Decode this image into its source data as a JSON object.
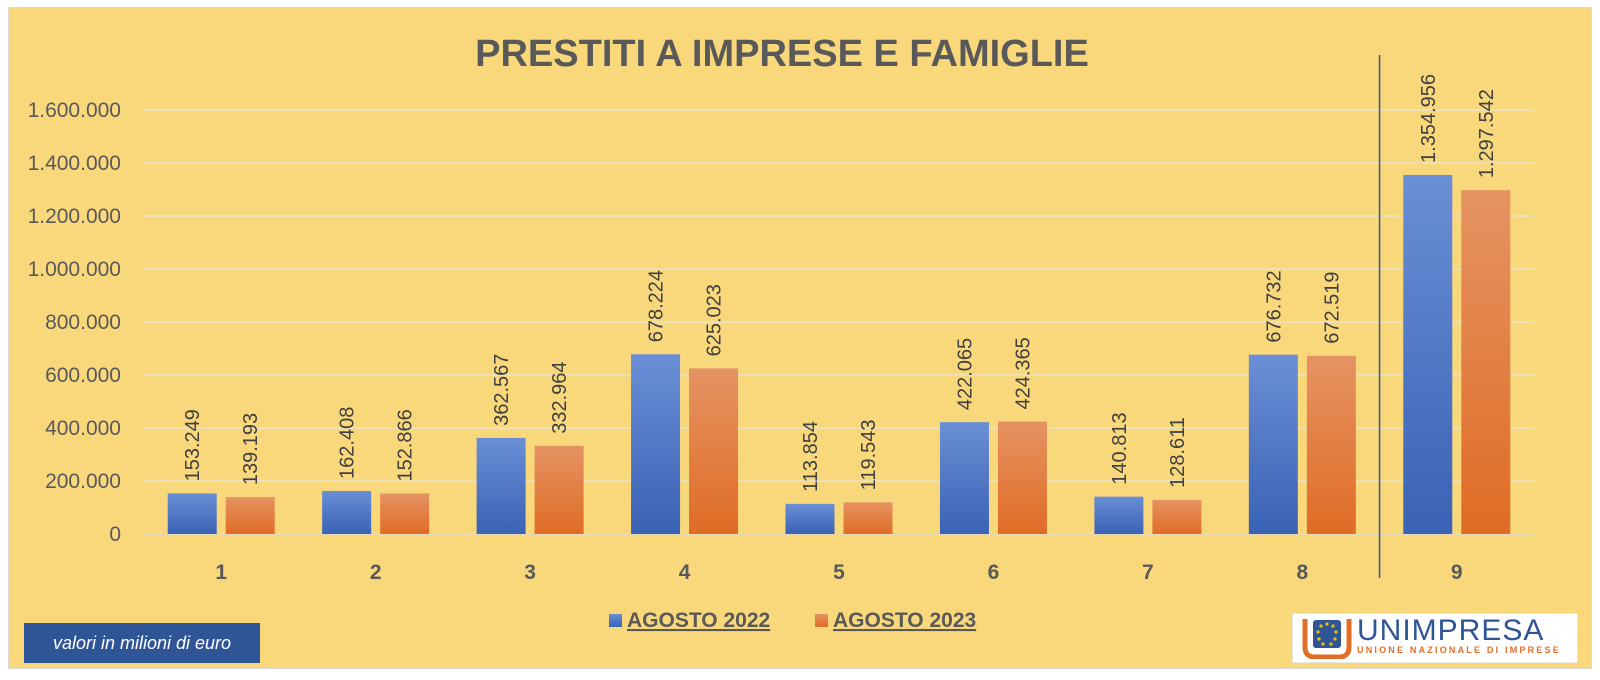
{
  "chart_data": {
    "type": "bar",
    "title": "PRESTITI A IMPRESE E FAMIGLIE",
    "categories": [
      "1",
      "2",
      "3",
      "4",
      "5",
      "6",
      "7",
      "8",
      "9"
    ],
    "series": [
      {
        "name": "AGOSTO 2022",
        "color": "#4472c4",
        "values": [
          153249,
          162408,
          362567,
          678224,
          113854,
          422065,
          140813,
          676732,
          1354956
        ],
        "labels": [
          "153.249",
          "162.408",
          "362.567",
          "678.224",
          "113.854",
          "422.065",
          "140.813",
          "676.732",
          "1.354.956"
        ]
      },
      {
        "name": "AGOSTO 2023",
        "color": "#ed7d31",
        "values": [
          139193,
          152866,
          332964,
          625023,
          119543,
          424365,
          128611,
          672519,
          1297542
        ],
        "labels": [
          "139.193",
          "152.866",
          "332.964",
          "625.023",
          "119.543",
          "424.365",
          "128.611",
          "672.519",
          "1.297.542"
        ]
      }
    ],
    "yticks": [
      0,
      200000,
      400000,
      600000,
      800000,
      1000000,
      1200000,
      1400000,
      1600000
    ],
    "ytick_labels": [
      "0",
      "200.000",
      "400.000",
      "600.000",
      "800.000",
      "1.000.000",
      "1.200.000",
      "1.400.000",
      "1.600.000"
    ],
    "ylim": [
      0,
      1600000
    ],
    "grid": true,
    "legend_position": "bottom",
    "separator_before_category": "9",
    "background": "#f9d87c"
  },
  "note": "valori in milioni di euro",
  "logo": {
    "name": "UNIMPRESA",
    "subtitle": "UNIONE NAZIONALE DI IMPRESE"
  }
}
